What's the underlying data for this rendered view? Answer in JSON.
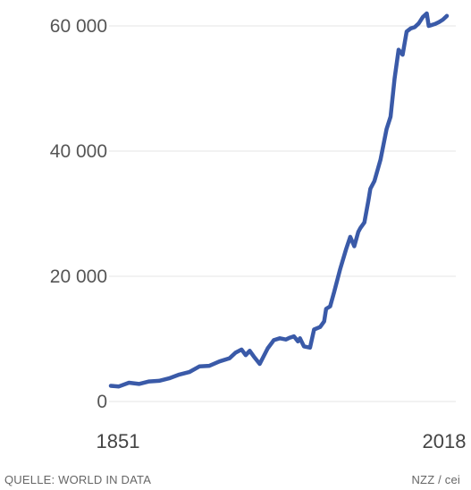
{
  "footer": {
    "source": "QUELLE: WORLD IN DATA",
    "credit": "NZZ / cei"
  },
  "chart_data": {
    "type": "line",
    "title": "",
    "xlabel": "",
    "ylabel": "",
    "xlim": [
      1851,
      2018
    ],
    "ylim": [
      0,
      62000
    ],
    "yticks": [
      0,
      20000,
      40000,
      60000
    ],
    "ytick_labels": [
      "0",
      "20 000",
      "40 000",
      "60 000"
    ],
    "xtick_labels": [
      "1851",
      "2018"
    ],
    "grid": "horizontal",
    "legend": "none",
    "line_color": "#3a5aa8",
    "series": [
      {
        "x": [
          1851,
          1855,
          1860,
          1865,
          1870,
          1875,
          1880,
          1885,
          1890,
          1895,
          1900,
          1905,
          1910,
          1913,
          1916,
          1918,
          1920,
          1922,
          1925,
          1929,
          1932,
          1935,
          1938,
          1940,
          1942,
          1944,
          1945,
          1947,
          1950,
          1952,
          1955,
          1957,
          1958,
          1960,
          1962,
          1965,
          1968,
          1970,
          1972,
          1974,
          1975,
          1977,
          1979,
          1980,
          1982,
          1985,
          1988,
          1990,
          1992,
          1994,
          1996,
          1998,
          2000,
          2002,
          2004,
          2006,
          2008,
          2009,
          2010,
          2012,
          2014,
          2016,
          2018
        ],
        "values": [
          2500,
          2400,
          3000,
          2800,
          3200,
          3300,
          3700,
          4300,
          4700,
          5600,
          5700,
          6400,
          6900,
          7800,
          8300,
          7400,
          8100,
          7200,
          6000,
          8500,
          9800,
          10100,
          9900,
          10200,
          10400,
          9600,
          10100,
          8800,
          8600,
          11500,
          11900,
          12800,
          14800,
          15200,
          17500,
          21200,
          24400,
          26300,
          24800,
          27100,
          27700,
          28600,
          32100,
          34000,
          35200,
          38600,
          43500,
          45500,
          51600,
          56200,
          55400,
          59100,
          59600,
          59800,
          60400,
          61400,
          62000,
          60000,
          60100,
          60300,
          60600,
          61000,
          61600
        ]
      }
    ]
  }
}
